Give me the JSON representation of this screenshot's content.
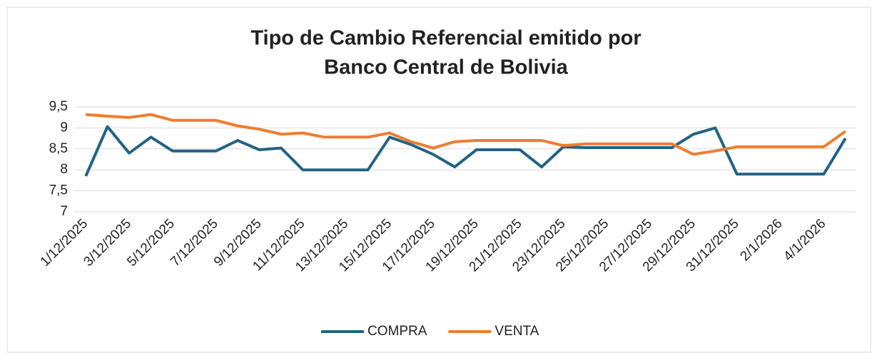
{
  "chart_data": {
    "type": "line",
    "title": "Tipo de Cambio Referencial emitido por",
    "subtitle": "Banco Central de Bolivia",
    "categories": [
      "1/12/2025",
      null,
      "3/12/2025",
      null,
      "5/12/2025",
      null,
      "7/12/2025",
      null,
      "9/12/2025",
      null,
      "11/12/2025",
      null,
      "13/12/2025",
      null,
      "15/12/2025",
      null,
      "17/12/2025",
      null,
      "19/12/2025",
      null,
      "21/12/2025",
      null,
      "23/12/2025",
      null,
      "25/12/2025",
      null,
      "27/12/2025",
      null,
      "29/12/2025",
      null,
      "31/12/2025",
      null,
      "2/1/2026",
      null,
      "4/1/2026",
      null
    ],
    "series": [
      {
        "name": "COMPRA",
        "color": "#236383",
        "values": [
          7.85,
          9.03,
          8.4,
          8.78,
          8.45,
          8.45,
          8.45,
          8.7,
          8.48,
          8.52,
          8.0,
          8.0,
          8.0,
          8.0,
          8.78,
          8.6,
          8.37,
          8.07,
          8.48,
          8.48,
          8.48,
          8.07,
          8.55,
          8.53,
          8.53,
          8.53,
          8.53,
          8.53,
          8.85,
          9.0,
          7.9,
          7.9,
          7.9,
          7.9,
          7.9,
          8.75
        ]
      },
      {
        "name": "VENTA",
        "color": "#ed7d31",
        "values": [
          9.32,
          9.28,
          9.25,
          9.32,
          9.18,
          9.18,
          9.18,
          9.05,
          8.97,
          8.85,
          8.88,
          8.78,
          8.78,
          8.78,
          8.88,
          8.67,
          8.52,
          8.67,
          8.7,
          8.7,
          8.7,
          8.7,
          8.58,
          8.62,
          8.62,
          8.62,
          8.62,
          8.62,
          8.37,
          8.45,
          8.55,
          8.55,
          8.55,
          8.55,
          8.55,
          8.92
        ]
      }
    ],
    "ylim": [
      7,
      9.5
    ],
    "yticks": [
      7,
      {
        "value": 7.5,
        "label": "7,5"
      },
      8,
      {
        "value": 8.5,
        "label": "8,5"
      },
      9,
      {
        "value": 9.5,
        "label": "9,5"
      }
    ],
    "grid": true,
    "legend": "bottom"
  }
}
